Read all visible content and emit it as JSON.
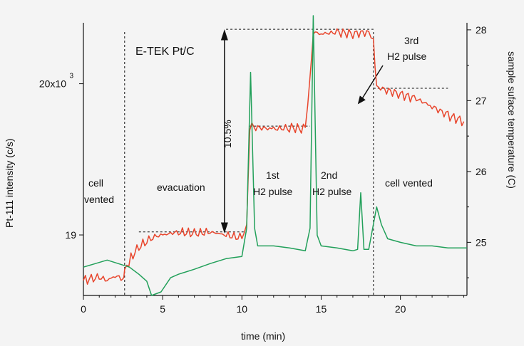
{
  "chart_data": {
    "type": "line",
    "title": "E-TEK Pt/C",
    "xlabel": "time (min)",
    "ylabel_left": "Pt-111 intensity (c/s)",
    "ylabel_right": "sample suface temperature (C)",
    "x_ticks": [
      "0",
      "5",
      "10",
      "15",
      "20"
    ],
    "y_left_ticks": [
      "19",
      "20x10"
    ],
    "y_left_tick_exponent": "3",
    "y_right_ticks": [
      "25",
      "26",
      "27",
      "28"
    ],
    "xlim": [
      0,
      24.2
    ],
    "ylim_left": [
      18.6,
      20.45
    ],
    "ylim_right": [
      24.25,
      28.2
    ],
    "series": [
      {
        "axis": "left",
        "color": "#e8452c",
        "x": [
          0,
          0.5,
          1,
          1.5,
          2,
          2.5,
          2.6,
          3,
          3.5,
          4,
          4.5,
          5,
          6,
          7,
          8,
          9,
          10,
          10.3,
          10.5,
          11,
          12,
          13,
          14,
          14.3,
          14.5,
          15,
          16,
          17,
          18,
          18.3,
          18.5,
          19,
          20,
          21,
          22,
          23,
          24
        ],
        "y": [
          18.7,
          18.71,
          18.72,
          18.7,
          18.73,
          18.71,
          18.76,
          18.85,
          18.92,
          18.96,
          18.99,
          19.0,
          19.02,
          19.01,
          19.02,
          19.0,
          18.98,
          19.05,
          19.72,
          19.71,
          19.7,
          19.71,
          19.7,
          20.05,
          20.34,
          20.33,
          20.34,
          20.33,
          20.34,
          20.3,
          19.98,
          19.96,
          19.93,
          19.9,
          19.85,
          19.79,
          19.75
        ]
      },
      {
        "axis": "right",
        "color": "#22a05a",
        "x": [
          0,
          1.5,
          2.9,
          3.5,
          4,
          4.3,
          4.9,
          5.5,
          6,
          7,
          8,
          9,
          10,
          10.3,
          10.55,
          10.8,
          11,
          12,
          13,
          14,
          14.3,
          14.5,
          14.75,
          15,
          16,
          17,
          17.3,
          17.5,
          17.7,
          18,
          18.5,
          18.8,
          19.2,
          20,
          21,
          22,
          23,
          24.2
        ],
        "y": [
          24.65,
          24.75,
          24.65,
          24.55,
          24.45,
          24.25,
          24.3,
          24.5,
          24.55,
          24.62,
          24.7,
          24.77,
          24.8,
          25.2,
          27.4,
          25.2,
          24.95,
          24.95,
          24.92,
          24.88,
          25.2,
          28.2,
          25.1,
          24.95,
          24.92,
          24.88,
          24.9,
          25.7,
          24.9,
          24.9,
          25.5,
          25.25,
          25.05,
          25.0,
          24.95,
          24.95,
          24.92,
          24.92
        ]
      }
    ],
    "annotations": {
      "cell_vented_1": [
        "cell",
        "vented"
      ],
      "evacuation": "evacuation",
      "pulse1": [
        "1st",
        "H2 pulse"
      ],
      "pulse2": [
        "2nd",
        "H2 pulse"
      ],
      "pulse3": [
        "3rd",
        "H2 pulse"
      ],
      "cell_vented_2": "cell vented",
      "increase": "10.5%"
    }
  }
}
